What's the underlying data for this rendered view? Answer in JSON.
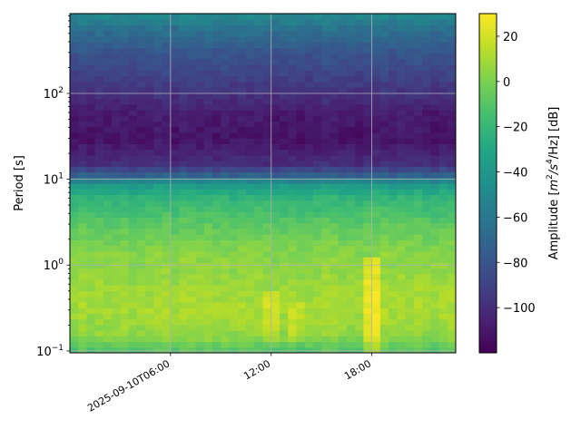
{
  "chart_data": {
    "type": "heatmap",
    "title": "",
    "xlabel": "",
    "ylabel": "Period [s]",
    "y_scale": "log",
    "ylim": [
      0.095,
      850
    ],
    "x_ticks": [
      {
        "label": "2025-09-10T06:00",
        "hours": 6
      },
      {
        "label": "12:00",
        "hours": 12
      },
      {
        "label": "18:00",
        "hours": 18
      }
    ],
    "xlim_hours": [
      0.0,
      23.0
    ],
    "y_ticks": [
      {
        "label": "10",
        "exp": "−1",
        "value": 0.1
      },
      {
        "label": "10",
        "exp": "0",
        "value": 1
      },
      {
        "label": "10",
        "exp": "1",
        "value": 10
      },
      {
        "label": "10",
        "exp": "2",
        "value": 100
      }
    ],
    "grid": true,
    "colormap": "viridis",
    "colorbar": {
      "label_main": "Amplitude [",
      "label_math": "m",
      "label_sup1": "2",
      "label_mid": "/s",
      "label_sup2": "4",
      "label_end": "/Hz] [dB]",
      "vmin": -120,
      "vmax": 30,
      "ticks": [
        {
          "label": "20",
          "value": 20
        },
        {
          "label": "0",
          "value": 0
        },
        {
          "label": "−20",
          "value": -20
        },
        {
          "label": "−40",
          "value": -40
        },
        {
          "label": "−60",
          "value": -60
        },
        {
          "label": "−80",
          "value": -80
        },
        {
          "label": "−100",
          "value": -100
        }
      ]
    },
    "amplitude_profile_db": [
      {
        "period": 0.095,
        "value": -12
      },
      {
        "period": 0.12,
        "value": -5
      },
      {
        "period": 0.15,
        "value": 5
      },
      {
        "period": 0.3,
        "value": 10
      },
      {
        "period": 0.7,
        "value": 7
      },
      {
        "period": 1.5,
        "value": 2
      },
      {
        "period": 3,
        "value": -8
      },
      {
        "period": 6,
        "value": -22
      },
      {
        "period": 9,
        "value": -40
      },
      {
        "period": 11,
        "value": -72
      },
      {
        "period": 15,
        "value": -100
      },
      {
        "period": 30,
        "value": -112
      },
      {
        "period": 60,
        "value": -108
      },
      {
        "period": 120,
        "value": -95
      },
      {
        "period": 300,
        "value": -80
      },
      {
        "period": 600,
        "value": -62
      },
      {
        "period": 850,
        "value": -48
      }
    ],
    "high_amplitude_events": [
      {
        "hours_start": 11.6,
        "hours_end": 12.5,
        "period_min": 0.12,
        "period_max": 0.5,
        "boost_db": 10
      },
      {
        "hours_start": 13.0,
        "hours_end": 13.8,
        "period_min": 0.12,
        "period_max": 0.4,
        "boost_db": 8
      },
      {
        "hours_start": 17.5,
        "hours_end": 18.5,
        "period_min": 0.1,
        "period_max": 1.2,
        "boost_db": 16
      }
    ]
  }
}
